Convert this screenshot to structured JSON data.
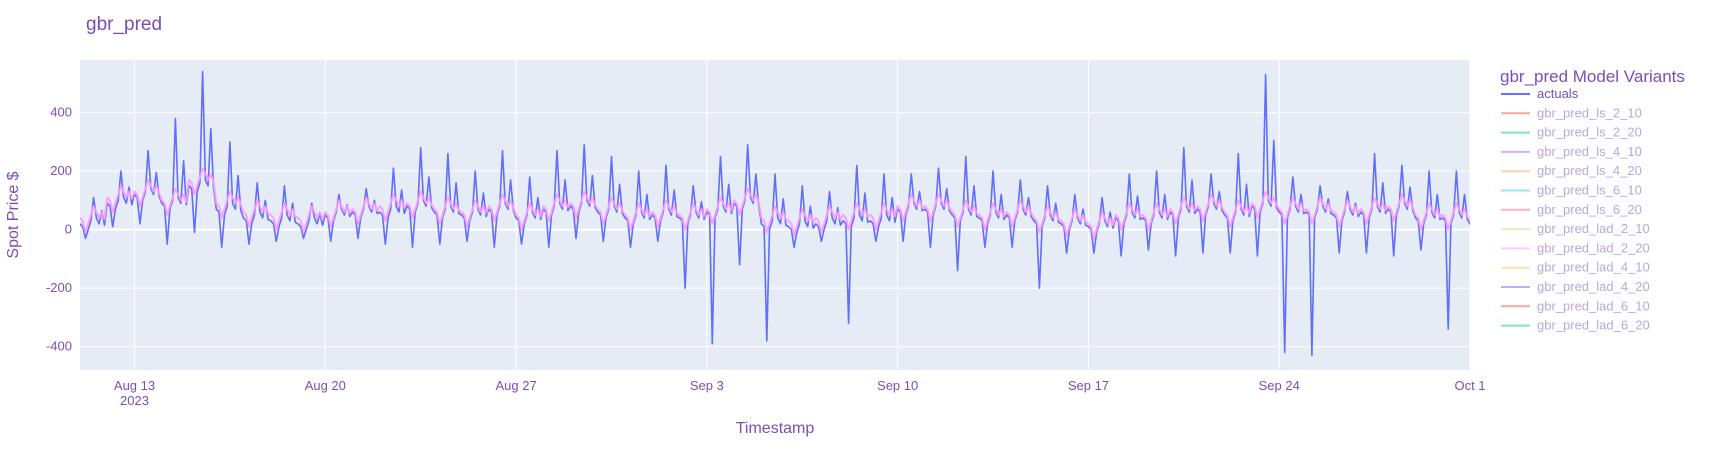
{
  "chart_data": {
    "type": "line",
    "title": "gbr_pred",
    "xlabel": "Timestamp",
    "ylabel": "Spot Price $",
    "x_range": [
      "2023-08-11",
      "2023-10-01"
    ],
    "ylim": [
      -480,
      580
    ],
    "grid": true,
    "legend": {
      "title": "gbr_pred Model Variants",
      "placement": "right"
    },
    "x_ticks": [
      {
        "date": "2023-08-13",
        "label": "Aug 13",
        "sublabel": "2023"
      },
      {
        "date": "2023-08-20",
        "label": "Aug 20"
      },
      {
        "date": "2023-08-27",
        "label": "Aug 27"
      },
      {
        "date": "2023-09-03",
        "label": "Sep 3"
      },
      {
        "date": "2023-09-10",
        "label": "Sep 10"
      },
      {
        "date": "2023-09-17",
        "label": "Sep 17"
      },
      {
        "date": "2023-09-24",
        "label": "Sep 24"
      },
      {
        "date": "2023-10-01",
        "label": "Oct 1"
      }
    ],
    "y_ticks": [
      400,
      200,
      0,
      -200,
      -400
    ],
    "series": [
      {
        "name": "actuals",
        "color": "#636efa",
        "opacity": 1.0,
        "x": [
          "2023-08-11",
          "2023-08-12",
          "2023-08-13",
          "2023-08-14",
          "2023-08-15",
          "2023-08-16",
          "2023-08-17",
          "2023-08-18",
          "2023-08-19",
          "2023-08-20",
          "2023-08-21",
          "2023-08-22",
          "2023-08-23",
          "2023-08-24",
          "2023-08-25",
          "2023-08-26",
          "2023-08-27",
          "2023-08-28",
          "2023-08-29",
          "2023-08-30",
          "2023-08-31",
          "2023-09-01",
          "2023-09-02",
          "2023-09-03",
          "2023-09-04",
          "2023-09-05",
          "2023-09-06",
          "2023-09-07",
          "2023-09-08",
          "2023-09-09",
          "2023-09-10",
          "2023-09-11",
          "2023-09-12",
          "2023-09-13",
          "2023-09-14",
          "2023-09-15",
          "2023-09-16",
          "2023-09-17",
          "2023-09-18",
          "2023-09-19",
          "2023-09-20",
          "2023-09-21",
          "2023-09-22",
          "2023-09-23",
          "2023-09-24",
          "2023-09-25",
          "2023-09-26",
          "2023-09-27",
          "2023-09-28",
          "2023-09-29",
          "2023-09-30",
          "2023-10-01"
        ],
        "max": [
          110,
          200,
          270,
          380,
          540,
          300,
          160,
          150,
          90,
          120,
          140,
          210,
          280,
          260,
          200,
          270,
          180,
          270,
          290,
          250,
          200,
          220,
          150,
          250,
          290,
          190,
          150,
          130,
          220,
          190,
          190,
          210,
          250,
          200,
          170,
          150,
          120,
          110,
          190,
          200,
          280,
          190,
          260,
          530,
          180,
          150,
          130,
          260,
          220,
          200,
          200,
          250
        ],
        "min": [
          -30,
          10,
          20,
          -50,
          -10,
          -60,
          -50,
          -40,
          -30,
          -40,
          -30,
          -50,
          -60,
          -50,
          -40,
          -60,
          -50,
          -60,
          -30,
          -40,
          -60,
          -40,
          -200,
          -390,
          -120,
          -380,
          -60,
          -40,
          -320,
          -40,
          -40,
          -60,
          -140,
          -60,
          -60,
          -200,
          -80,
          -80,
          -90,
          -70,
          -90,
          -80,
          -80,
          -90,
          -420,
          -430,
          -80,
          -80,
          -90,
          -70,
          -340,
          -60
        ],
        "typical": [
          20,
          90,
          120,
          90,
          150,
          70,
          40,
          30,
          20,
          50,
          60,
          60,
          80,
          60,
          50,
          70,
          40,
          70,
          80,
          60,
          40,
          50,
          40,
          60,
          90,
          20,
          10,
          20,
          30,
          30,
          70,
          70,
          50,
          40,
          50,
          30,
          20,
          10,
          40,
          40,
          60,
          70,
          50,
          80,
          60,
          60,
          50,
          60,
          70,
          40,
          40,
          20
        ]
      },
      {
        "name": "gbr_pred_ls_2_10",
        "color": "#ef553b",
        "opacity": 0.45
      },
      {
        "name": "gbr_pred_ls_2_20",
        "color": "#00cc96",
        "opacity": 0.45
      },
      {
        "name": "gbr_pred_ls_4_10",
        "color": "#ab63fa",
        "opacity": 0.45
      },
      {
        "name": "gbr_pred_ls_4_20",
        "color": "#ffa15a",
        "opacity": 0.45
      },
      {
        "name": "gbr_pred_ls_6_10",
        "color": "#19d3f3",
        "opacity": 0.45
      },
      {
        "name": "gbr_pred_ls_6_20",
        "color": "#ff6692",
        "opacity": 0.45
      },
      {
        "name": "gbr_pred_lad_2_10",
        "color": "#b6e880",
        "opacity": 0.45
      },
      {
        "name": "gbr_pred_lad_2_20",
        "color": "#ff97ff",
        "opacity": 0.9,
        "typical": [
          40,
          110,
          130,
          100,
          170,
          90,
          60,
          50,
          40,
          60,
          70,
          80,
          90,
          70,
          60,
          80,
          50,
          80,
          90,
          70,
          50,
          60,
          50,
          70,
          100,
          40,
          30,
          40,
          50,
          50,
          80,
          80,
          60,
          50,
          60,
          40,
          30,
          20,
          50,
          50,
          70,
          80,
          60,
          90,
          70,
          70,
          60,
          70,
          80,
          50,
          50,
          30
        ]
      },
      {
        "name": "gbr_pred_lad_4_10",
        "color": "#fecb52",
        "opacity": 0.45
      },
      {
        "name": "gbr_pred_lad_4_20",
        "color": "#636efa",
        "opacity": 0.45
      },
      {
        "name": "gbr_pred_lad_6_10",
        "color": "#ef553b",
        "opacity": 0.45
      },
      {
        "name": "gbr_pred_lad_6_20",
        "color": "#00cc96",
        "opacity": 0.45
      }
    ]
  }
}
